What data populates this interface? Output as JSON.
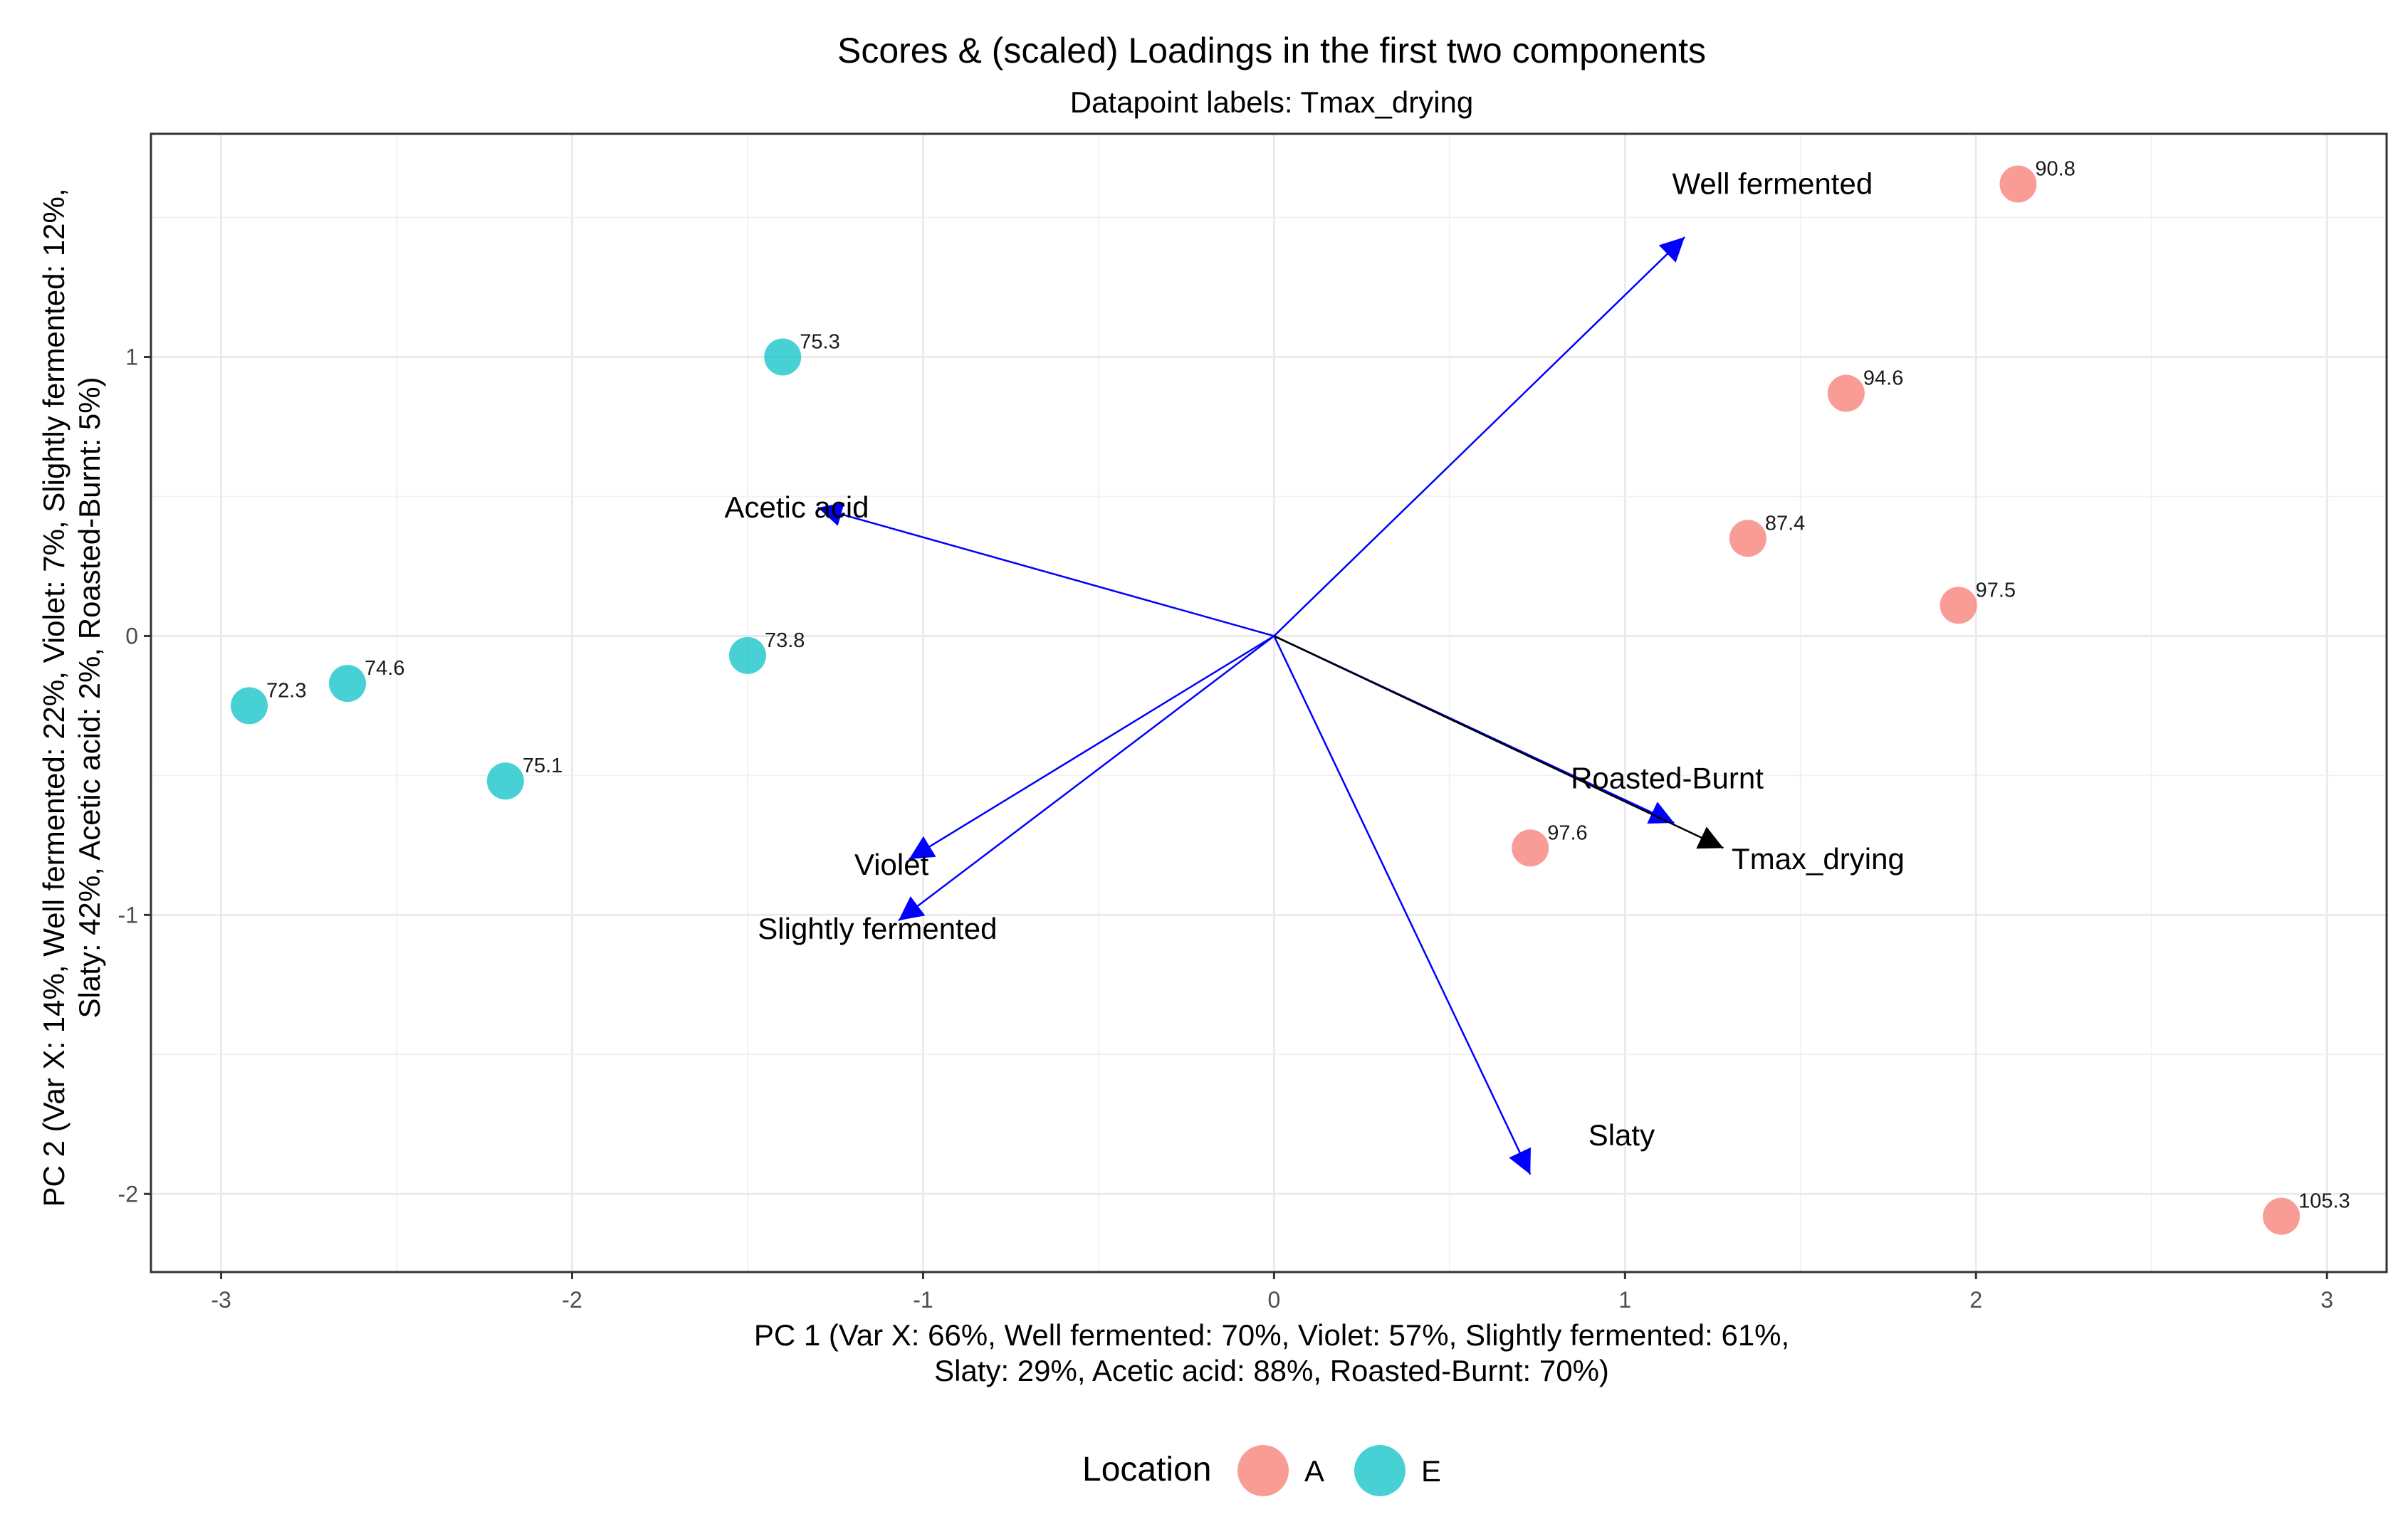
{
  "chart_data": {
    "type": "scatter",
    "title": "Scores & (scaled) Loadings in the first two components",
    "subtitle": "Datapoint labels: Tmax_drying",
    "xlabel_lines": [
      "PC 1 (Var X: 66%, Well fermented: 70%, Violet: 57%, Slightly fermented: 61%,",
      "Slaty: 29%, Acetic acid: 88%, Roasted-Burnt: 70%)"
    ],
    "ylabel_lines": [
      "PC 2 (Var X: 14%, Well fermented: 22%, Violet: 7%, Slightly fermented: 12%,",
      "Slaty: 42%, Acetic acid: 2%, Roasted-Burnt: 5%)"
    ],
    "xlim": [
      -3.2,
      3.17
    ],
    "ylim": [
      -2.28,
      1.8
    ],
    "xticks": [
      {
        "value": -3,
        "label": "-3"
      },
      {
        "value": -2,
        "label": "-2"
      },
      {
        "value": -1,
        "label": "-1"
      },
      {
        "value": 0,
        "label": "0"
      },
      {
        "value": 1,
        "label": "1"
      },
      {
        "value": 2,
        "label": "2"
      },
      {
        "value": 3,
        "label": "3"
      }
    ],
    "yticks": [
      {
        "value": -2,
        "label": "-2"
      },
      {
        "value": -1,
        "label": "-1"
      },
      {
        "value": 0,
        "label": "0"
      },
      {
        "value": 1,
        "label": "1"
      }
    ],
    "grid": true,
    "legend": {
      "title": "Location",
      "position": "bottom",
      "entries": [
        {
          "name": "A",
          "color": "#F8766D"
        },
        {
          "name": "E",
          "color": "#00BFC4"
        }
      ]
    },
    "series": [
      {
        "name": "A",
        "color": "#F8766D",
        "points": [
          {
            "x": 2.12,
            "y": 1.62,
            "label": "90.8"
          },
          {
            "x": 1.63,
            "y": 0.87,
            "label": "94.6"
          },
          {
            "x": 1.35,
            "y": 0.35,
            "label": "87.4"
          },
          {
            "x": 1.95,
            "y": 0.11,
            "label": "97.5"
          },
          {
            "x": 0.73,
            "y": -0.76,
            "label": "97.6"
          },
          {
            "x": 2.87,
            "y": -2.08,
            "label": "105.3"
          }
        ]
      },
      {
        "name": "E",
        "color": "#00BFC4",
        "points": [
          {
            "x": -1.4,
            "y": 1.0,
            "label": "75.3"
          },
          {
            "x": -1.5,
            "y": -0.07,
            "label": "73.8"
          },
          {
            "x": -2.64,
            "y": -0.17,
            "label": "74.6"
          },
          {
            "x": -2.92,
            "y": -0.25,
            "label": "72.3"
          },
          {
            "x": -2.19,
            "y": -0.52,
            "label": "75.1"
          }
        ]
      }
    ],
    "loadings": [
      {
        "name": "Well fermented",
        "x": 1.17,
        "y": 1.43,
        "color": "#0000FF",
        "label_x": 1.42,
        "label_y": 1.62
      },
      {
        "name": "Acetic acid",
        "x": -1.3,
        "y": 0.46,
        "color": "#0000FF",
        "label_x": -1.36,
        "label_y": 0.46
      },
      {
        "name": "Violet",
        "x": -1.04,
        "y": -0.8,
        "color": "#0000FF",
        "label_x": -1.09,
        "label_y": -0.82
      },
      {
        "name": "Slightly fermented",
        "x": -1.07,
        "y": -1.02,
        "color": "#0000FF",
        "label_x": -1.13,
        "label_y": -1.05
      },
      {
        "name": "Roasted-Burnt",
        "x": 1.14,
        "y": -0.67,
        "color": "#0000FF",
        "label_x": 1.12,
        "label_y": -0.51
      },
      {
        "name": "Slaty",
        "x": 0.73,
        "y": -1.93,
        "color": "#0000FF",
        "label_x": 0.99,
        "label_y": -1.79
      },
      {
        "name": "Tmax_drying",
        "x": 1.28,
        "y": -0.76,
        "color": "#000000",
        "label_x": 1.55,
        "label_y": -0.8
      }
    ]
  }
}
